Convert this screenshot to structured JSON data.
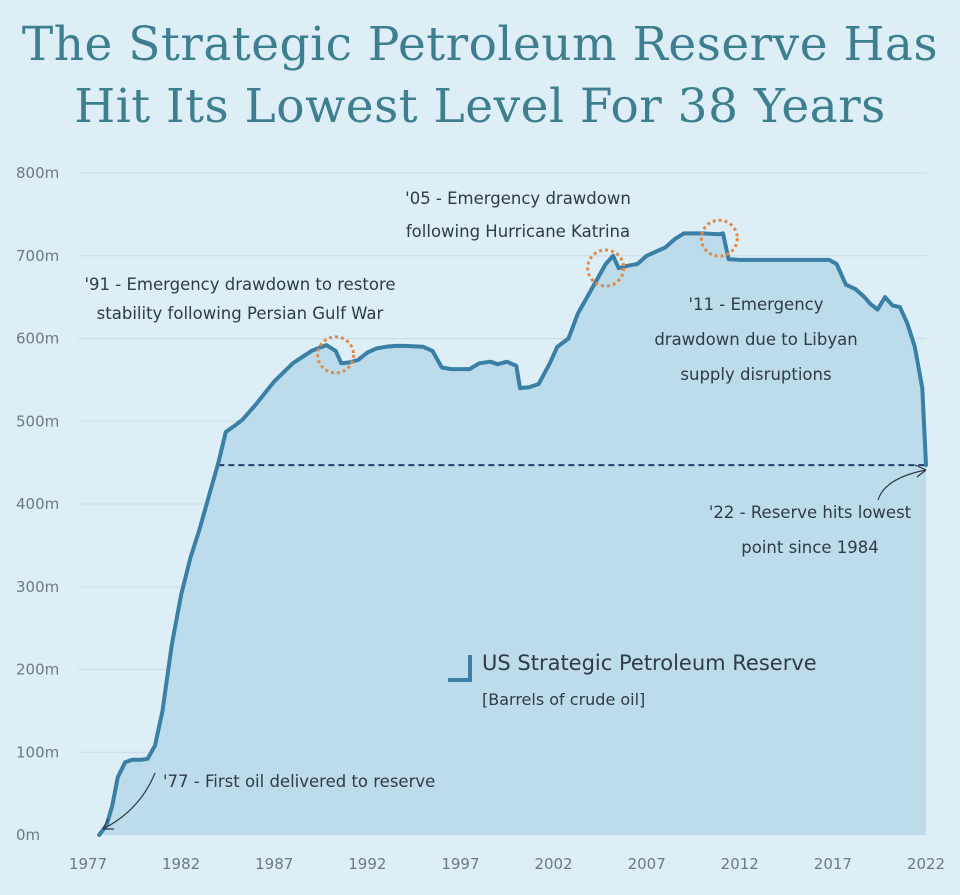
{
  "title": {
    "line1": "The Strategic Petroleum Reserve Has",
    "line2": "Hit Its Lowest Level For 38 Years"
  },
  "colors": {
    "background": "#ddeef7",
    "area_fill": "#bcdbeb",
    "line": "#3a80a6",
    "title": "#3e7f8f",
    "reference_line": "#1f3f73",
    "highlight_circle": "#e08a45"
  },
  "chart_data": {
    "type": "area",
    "title": "The Strategic Petroleum Reserve Has Hit Its Lowest Level For 38 Years",
    "xlabel": "",
    "ylabel": "",
    "xlim": [
      1977,
      2022
    ],
    "ylim": [
      0,
      800
    ],
    "x_ticks": [
      1977,
      1982,
      1987,
      1992,
      1997,
      2002,
      2007,
      2012,
      2017,
      2022
    ],
    "x_tick_labels": [
      "1977",
      "1982",
      "1987",
      "1992",
      "1997",
      "2002",
      "2007",
      "2012",
      "2017",
      "2022"
    ],
    "y_ticks": [
      0,
      100,
      200,
      300,
      400,
      500,
      600,
      700,
      800
    ],
    "y_tick_labels": [
      "0m",
      "100m",
      "200m",
      "300m",
      "400m",
      "500m",
      "600m",
      "700m",
      "800m"
    ],
    "series": [
      {
        "name": "US Strategic Petroleum Reserve",
        "unit": "Barrels of crude oil",
        "x": [
          1977.6,
          1978.0,
          1978.3,
          1978.6,
          1979.0,
          1979.4,
          1979.9,
          1980.2,
          1980.6,
          1981.0,
          1981.5,
          1982.0,
          1982.5,
          1983.0,
          1983.5,
          1984.0,
          1984.4,
          1984.9,
          1985.3,
          1986.0,
          1987.0,
          1988.0,
          1989.0,
          1989.8,
          1990.3,
          1990.6,
          1991.0,
          1991.5,
          1992.0,
          1992.5,
          1993.0,
          1993.5,
          1994.0,
          1995.0,
          1995.5,
          1996.0,
          1996.5,
          1997.0,
          1997.5,
          1998.0,
          1998.6,
          1999.0,
          1999.5,
          2000.0,
          2000.2,
          2000.7,
          2001.2,
          2001.8,
          2002.2,
          2002.8,
          2003.3,
          2003.8,
          2004.3,
          2004.8,
          2005.2,
          2005.5,
          2006.0,
          2006.5,
          2007.0,
          2007.5,
          2008.0,
          2008.5,
          2009.0,
          2010.0,
          2010.9,
          2011.1,
          2011.4,
          2012.0,
          2013.0,
          2014.0,
          2015.0,
          2016.0,
          2016.8,
          2017.2,
          2017.7,
          2018.2,
          2018.7,
          2019.0,
          2019.4,
          2019.8,
          2020.2,
          2020.6,
          2021.0,
          2021.4,
          2021.8,
          2022.0
        ],
        "values": [
          0,
          12,
          35,
          70,
          88,
          91,
          91,
          92,
          108,
          150,
          230,
          290,
          335,
          370,
          410,
          450,
          487,
          495,
          502,
          520,
          548,
          570,
          585,
          592,
          585,
          570,
          571,
          574,
          583,
          588,
          590,
          591,
          591,
          590,
          585,
          565,
          563,
          563,
          563,
          570,
          572,
          569,
          572,
          567,
          540,
          541,
          545,
          570,
          590,
          600,
          630,
          650,
          670,
          690,
          700,
          685,
          688,
          690,
          700,
          705,
          710,
          720,
          727,
          727,
          726,
          727,
          696,
          695,
          695,
          695,
          695,
          695,
          695,
          690,
          665,
          660,
          650,
          642,
          635,
          650,
          640,
          638,
          618,
          590,
          540,
          447
        ]
      }
    ],
    "reference_line": {
      "value": 447,
      "x_from": 1984,
      "x_to": 2022,
      "style": "dashed"
    },
    "highlights": [
      1990.3,
      2004.8,
      2010.9
    ],
    "legend": {
      "label": "US Strategic Petroleum Reserve",
      "sublabel": "[Barrels of crude oil]",
      "placement": "center"
    },
    "annotations": [
      {
        "id": "a77",
        "lines": [
          "'77 - First oil delivered to reserve"
        ],
        "x": 1977.6,
        "y": 0
      },
      {
        "id": "a91",
        "lines": [
          "'91 - Emergency drawdown to restore",
          "stability following Persian Gulf War"
        ],
        "x": 1990.3,
        "y": 590
      },
      {
        "id": "a05",
        "lines": [
          "'05 - Emergency drawdown",
          "following Hurricane Katrina"
        ],
        "x": 2004.8,
        "y": 700
      },
      {
        "id": "a11",
        "lines": [
          "'11 - Emergency",
          "drawdown due to Libyan",
          "supply disruptions"
        ],
        "x": 2010.9,
        "y": 727
      },
      {
        "id": "a22",
        "lines": [
          "'22 - Reserve hits lowest",
          "point since 1984"
        ],
        "x": 2022.0,
        "y": 447
      }
    ]
  }
}
